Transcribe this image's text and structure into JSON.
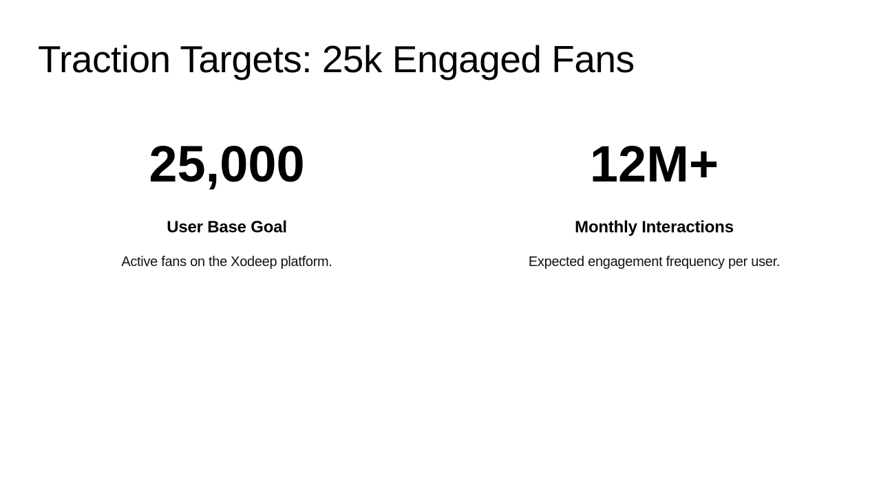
{
  "slide": {
    "title": "Traction Targets: 25k Engaged Fans",
    "stats": [
      {
        "value": "25,000",
        "label": "User Base Goal",
        "description": "Active fans on the Xodeep platform."
      },
      {
        "value": "12M+",
        "label": "Monthly Interactions",
        "description": "Expected engagement frequency per user."
      }
    ],
    "colors": {
      "background": "#ffffff",
      "text": "#000000"
    }
  }
}
